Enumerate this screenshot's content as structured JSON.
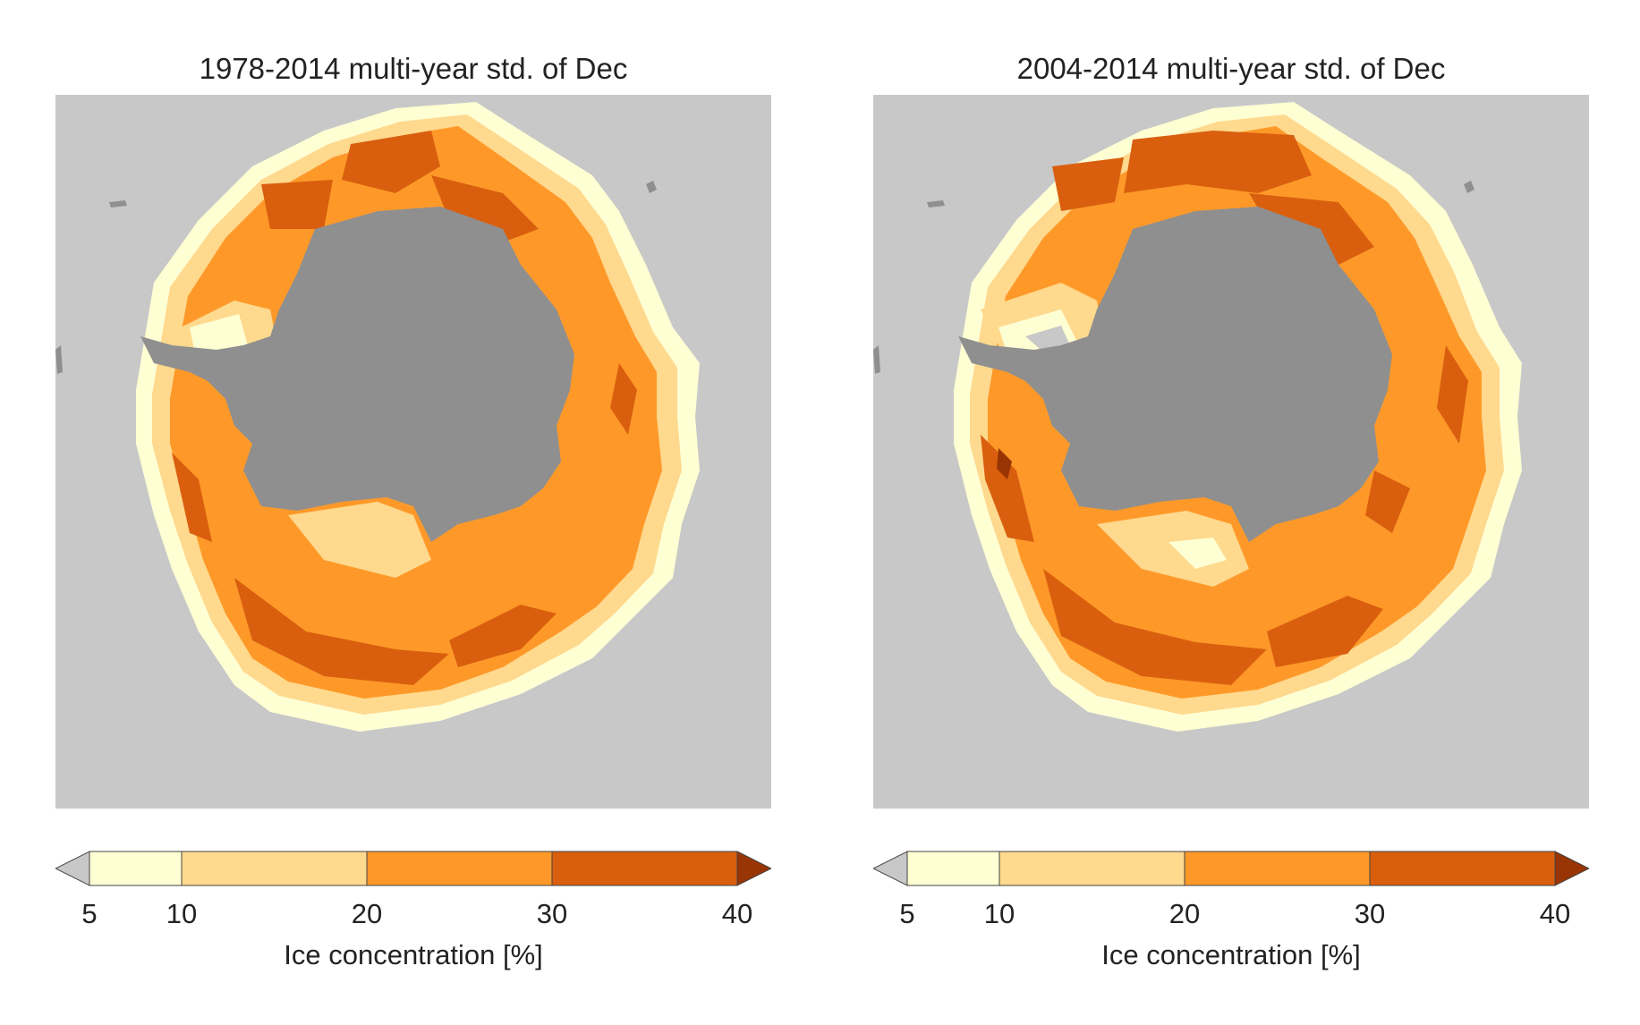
{
  "maps": [
    {
      "title": "1978-2014 multi-year std. of Dec"
    },
    {
      "title": "2004-2014 multi-year std. of Dec"
    }
  ],
  "legend": {
    "label": "Ice concentration [%]",
    "ticks": [
      "5",
      "10",
      "20",
      "30",
      "40"
    ],
    "bins": [
      {
        "range": "<5",
        "color": "#c8c8c8"
      },
      {
        "range": "5-10",
        "color": "#ffffd4"
      },
      {
        "range": "10-20",
        "color": "#fed98e"
      },
      {
        "range": "20-30",
        "color": "#fe9929"
      },
      {
        "range": "30-40",
        "color": "#d95f0e"
      },
      {
        "range": ">40",
        "color": "#993404"
      }
    ]
  },
  "colors": {
    "background": "#c8c8c8",
    "land": "#8f8f8f"
  }
}
